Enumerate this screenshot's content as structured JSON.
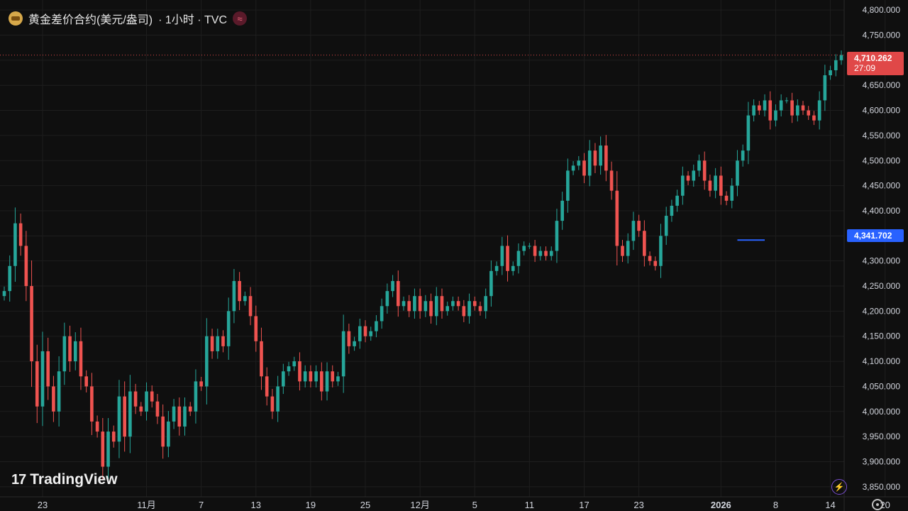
{
  "header": {
    "symbol_title": "黄金差价合约(美元/盎司)",
    "suffix": "· 1小时 · TVC",
    "flag_glyph": "≈"
  },
  "last_price": {
    "value": "4,710.262",
    "countdown": "27:09",
    "color": "#e04848"
  },
  "marker_price": {
    "value": "4,341.702",
    "color": "#2962ff"
  },
  "branding": {
    "logo_mark": "17",
    "logo_text": "TradingView"
  },
  "colors": {
    "up": "#26a69a",
    "down": "#ef5350",
    "background": "#0f0f0f",
    "grid": "#1e1e1e",
    "axis_text": "#d1d4dc"
  },
  "chart_data": {
    "type": "candlestick",
    "timeframe": "1小时",
    "ylim": [
      3830,
      4820
    ],
    "y_ticks": [
      "4,800.000",
      "4,750.000",
      "4,700.000",
      "4,650.000",
      "4,600.000",
      "4,550.000",
      "4,500.000",
      "4,450.000",
      "4,400.000",
      "4,350.000",
      "4,300.000",
      "4,250.000",
      "4,200.000",
      "4,150.000",
      "4,100.000",
      "4,050.000",
      "4,000.000",
      "3,950.000",
      "3,900.000",
      "3,850.000"
    ],
    "y_tick_values": [
      4800,
      4750,
      4700,
      4650,
      4600,
      4550,
      4500,
      4450,
      4400,
      4350,
      4300,
      4250,
      4200,
      4150,
      4100,
      4050,
      4000,
      3950,
      3900,
      3850
    ],
    "x_ticks": [
      "23",
      "11月",
      "7",
      "13",
      "19",
      "25",
      "12月",
      "5",
      "11",
      "17",
      "23",
      "2026",
      "8",
      "14",
      "20"
    ],
    "x_tick_index": [
      7,
      26,
      36,
      46,
      56,
      66,
      76,
      86,
      96,
      106,
      116,
      131,
      141,
      151,
      161
    ],
    "bold_x_ticks": [
      "2026"
    ],
    "last_price": 4710.262,
    "marker_level": 4341.702,
    "marker_index_range": [
      134,
      139
    ],
    "closes": [
      4240,
      4290,
      4375,
      4330,
      4250,
      4100,
      4010,
      4120,
      4050,
      4000,
      4080,
      4150,
      4100,
      4140,
      4070,
      4050,
      3980,
      3960,
      3890,
      3960,
      3940,
      4030,
      3950,
      4040,
      4010,
      4000,
      4040,
      4020,
      3990,
      3930,
      3980,
      4010,
      3970,
      4010,
      4000,
      4060,
      4050,
      4150,
      4120,
      4150,
      4130,
      4200,
      4260,
      4220,
      4230,
      4190,
      4140,
      4070,
      4030,
      4000,
      4050,
      4080,
      4090,
      4100,
      4060,
      4080,
      4060,
      4080,
      4040,
      4080,
      4060,
      4070,
      4160,
      4130,
      4140,
      4170,
      4150,
      4160,
      4180,
      4210,
      4240,
      4260,
      4210,
      4220,
      4200,
      4230,
      4200,
      4220,
      4190,
      4230,
      4200,
      4210,
      4220,
      4210,
      4190,
      4220,
      4210,
      4200,
      4230,
      4280,
      4290,
      4330,
      4280,
      4290,
      4320,
      4330,
      4330,
      4310,
      4320,
      4310,
      4320,
      4380,
      4420,
      4480,
      4490,
      4500,
      4470,
      4520,
      4490,
      4530,
      4480,
      4440,
      4330,
      4310,
      4340,
      4380,
      4360,
      4310,
      4300,
      4290,
      4350,
      4390,
      4410,
      4430,
      4470,
      4460,
      4480,
      4500,
      4460,
      4440,
      4470,
      4430,
      4420,
      4450,
      4500,
      4520,
      4590,
      4610,
      4600,
      4620,
      4580,
      4600,
      4620,
      4620,
      4590,
      4610,
      4600,
      4590,
      4580,
      4620,
      4670,
      4680,
      4700,
      4710.262
    ]
  }
}
